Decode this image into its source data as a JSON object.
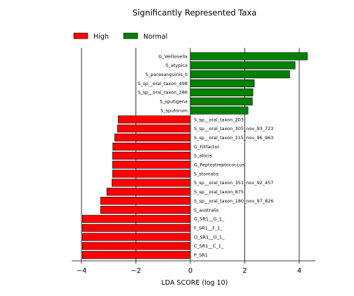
{
  "chart_data": {
    "type": "bar",
    "orientation": "horizontal",
    "title": "Significantly Represented Taxa",
    "xlabel": "LDA SCORE (log 10)",
    "ylabel": "",
    "xlim": [
      -4,
      4.5
    ],
    "xticks": [
      -4,
      -2,
      0,
      2,
      4
    ],
    "xtick_labels": [
      "−4",
      "−2",
      "0",
      "2",
      "4"
    ],
    "grid": "vertical",
    "legend": {
      "placement": "top-left",
      "items": [
        {
          "name": "High",
          "color": "#ff0000"
        },
        {
          "name": "Normal",
          "color": "#008000"
        }
      ]
    },
    "bars": [
      {
        "label": "G_Veillonella",
        "value": 4.3,
        "group": "Normal"
      },
      {
        "label": "S_atypica",
        "value": 3.85,
        "group": "Normal"
      },
      {
        "label": "S_parasanguinis_II",
        "value": 3.65,
        "group": "Normal"
      },
      {
        "label": "S_sp__oral_taxon_498",
        "value": 2.35,
        "group": "Normal"
      },
      {
        "label": "S_sp__oral_taxon_286",
        "value": 2.3,
        "group": "Normal"
      },
      {
        "label": "S_sputigena",
        "value": 2.28,
        "group": "Normal"
      },
      {
        "label": "S_sputorum",
        "value": 2.12,
        "group": "Normal"
      },
      {
        "label": "S_sp__oral_taxon_203",
        "value": -2.65,
        "group": "High"
      },
      {
        "label": "S_sp__oral_taxon_305_nov_93_723",
        "value": -2.68,
        "group": "High"
      },
      {
        "label": "S_sp__oral_taxon_215_nov_96_963",
        "value": -2.78,
        "group": "High"
      },
      {
        "label": "G_Filifactor",
        "value": -2.85,
        "group": "High"
      },
      {
        "label": "S_alocis",
        "value": -2.86,
        "group": "High"
      },
      {
        "label": "G_Peptostreptococcus",
        "value": -2.86,
        "group": "High"
      },
      {
        "label": "S_stomatis",
        "value": -2.86,
        "group": "High"
      },
      {
        "label": "S_sp__oral_taxon_351_nov_92_457",
        "value": -2.88,
        "group": "High"
      },
      {
        "label": "S_sp__oral_taxon_875",
        "value": -3.07,
        "group": "High"
      },
      {
        "label": "S_sp__oral_taxon_180_nov_97_826",
        "value": -3.3,
        "group": "High"
      },
      {
        "label": "S_australis",
        "value": -3.3,
        "group": "High"
      },
      {
        "label": "G_SR1__G_1_",
        "value": -3.97,
        "group": "High"
      },
      {
        "label": "F_SR1__F_1_",
        "value": -3.97,
        "group": "High"
      },
      {
        "label": "O_SR1__O_1_",
        "value": -3.97,
        "group": "High"
      },
      {
        "label": "C_SR1__C_1_",
        "value": -3.97,
        "group": "High"
      },
      {
        "label": "P_SR1",
        "value": -3.97,
        "group": "High"
      }
    ]
  }
}
